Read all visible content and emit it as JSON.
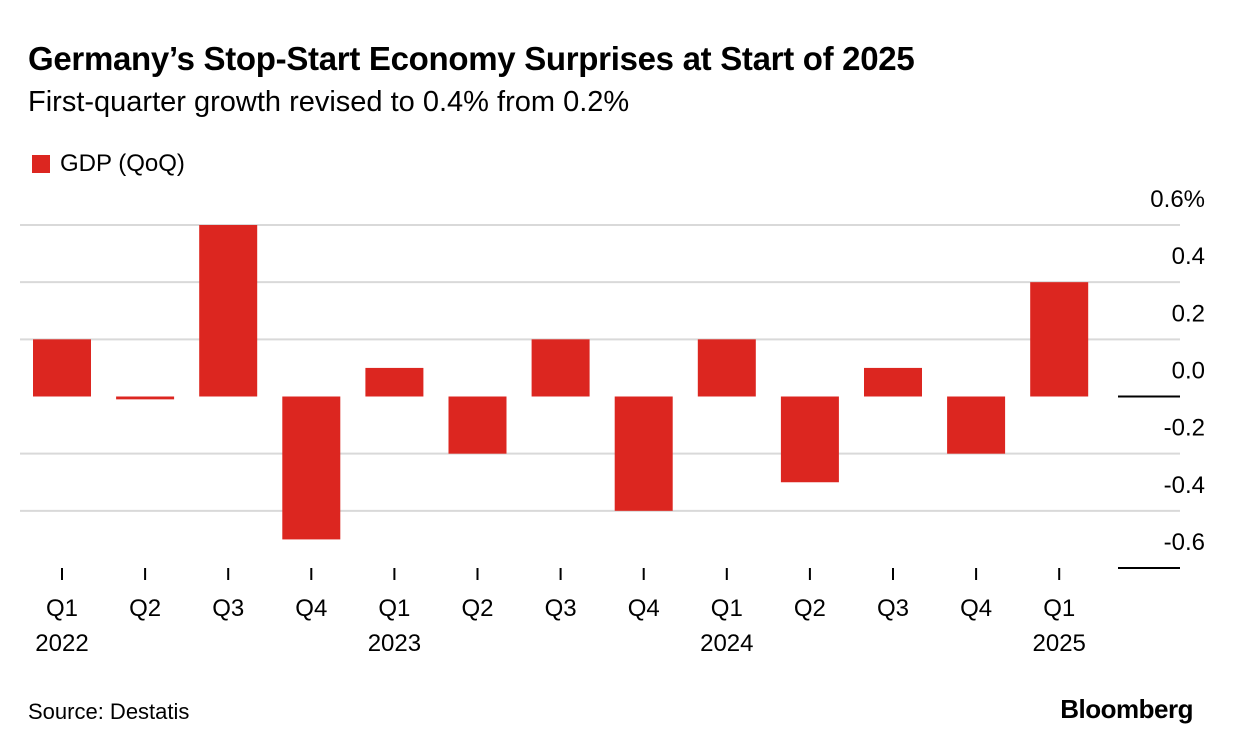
{
  "title": "Germany’s Stop-Start Economy Surprises at Start of 2025",
  "subtitle": "First-quarter growth revised to 0.4% from 0.2%",
  "source": "Source: Destatis",
  "brand": "Bloomberg",
  "colors": {
    "bar": "#dc2620",
    "grid": "#d9d9d9",
    "axis": "#000000"
  },
  "chart_data": {
    "type": "bar",
    "categories": [
      "Q1 2022",
      "Q2 2022",
      "Q3 2022",
      "Q4 2022",
      "Q1 2023",
      "Q2 2023",
      "Q3 2023",
      "Q4 2023",
      "Q1 2024",
      "Q2 2024",
      "Q3 2024",
      "Q4 2024",
      "Q1 2025"
    ],
    "tick_labels": [
      "Q1",
      "Q2",
      "Q3",
      "Q4",
      "Q1",
      "Q2",
      "Q3",
      "Q4",
      "Q1",
      "Q2",
      "Q3",
      "Q4",
      "Q1"
    ],
    "year_labels": [
      {
        "index": 0,
        "label": "2022"
      },
      {
        "index": 4,
        "label": "2023"
      },
      {
        "index": 8,
        "label": "2024"
      },
      {
        "index": 12,
        "label": "2025"
      }
    ],
    "series": [
      {
        "name": "GDP (QoQ)",
        "values": [
          0.2,
          -0.01,
          0.6,
          -0.5,
          0.1,
          -0.2,
          0.2,
          -0.4,
          0.2,
          -0.3,
          0.1,
          -0.2,
          0.4
        ]
      }
    ],
    "ylim": [
      -0.6,
      0.6
    ],
    "y_ticks": [
      {
        "value": 0.6,
        "label": "0.6%"
      },
      {
        "value": 0.4,
        "label": "0.4"
      },
      {
        "value": 0.2,
        "label": "0.2"
      },
      {
        "value": 0.0,
        "label": "0.0"
      },
      {
        "value": -0.2,
        "label": "-0.2"
      },
      {
        "value": -0.4,
        "label": "-0.4"
      },
      {
        "value": -0.6,
        "label": "-0.6"
      }
    ],
    "legend_position": "top-left",
    "grid": true
  }
}
